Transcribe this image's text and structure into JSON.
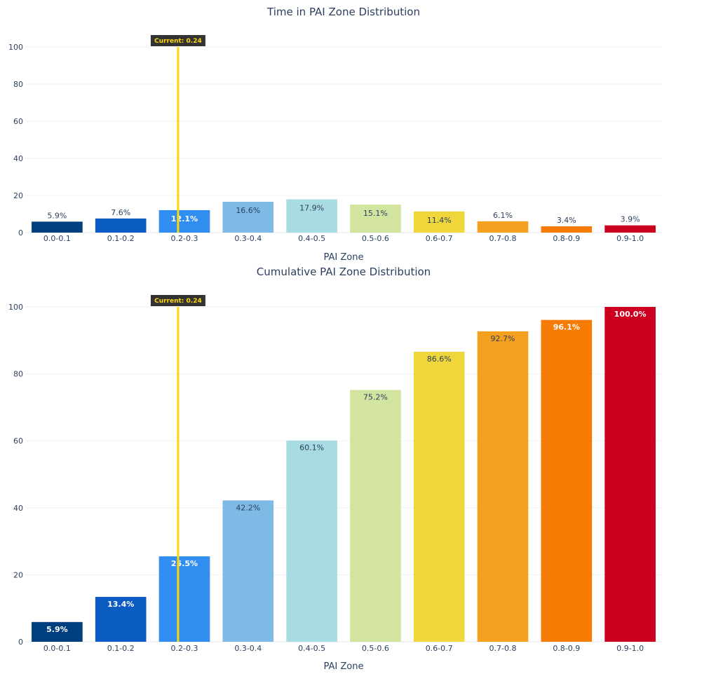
{
  "colors": {
    "zones": [
      "#003f7f",
      "#0a5cc2",
      "#2f8eef",
      "#7dbbe6",
      "#a8dbe2",
      "#d3e4a0",
      "#efd63a",
      "#f5a01f",
      "#f67c05",
      "#cc001e"
    ],
    "marker_line": "#ffd60a",
    "marker_box": "#333333",
    "marker_text": "#ffd60a"
  },
  "chart_data": [
    {
      "type": "bar",
      "title": "Time in PAI Zone Distribution",
      "xlabel": "PAI Zone",
      "ylabel": "",
      "categories": [
        "0.0-0.1",
        "0.1-0.2",
        "0.2-0.3",
        "0.3-0.4",
        "0.4-0.5",
        "0.5-0.6",
        "0.6-0.7",
        "0.7-0.8",
        "0.8-0.9",
        "0.9-1.0"
      ],
      "values": [
        5.9,
        7.6,
        12.1,
        16.6,
        17.9,
        15.1,
        11.4,
        6.1,
        3.4,
        3.9
      ],
      "labels": [
        "5.9%",
        "7.6%",
        "12.1%",
        "16.6%",
        "17.9%",
        "15.1%",
        "11.4%",
        "6.1%",
        "3.4%",
        "3.9%"
      ],
      "ylim": [
        0,
        105
      ],
      "yticks": [
        0,
        20,
        40,
        60,
        80,
        100
      ],
      "grid": true,
      "marker": {
        "x": 0.24,
        "label": "Current: 0.24"
      }
    },
    {
      "type": "bar",
      "title": "Cumulative PAI Zone Distribution",
      "xlabel": "PAI Zone",
      "ylabel": "",
      "categories": [
        "0.0-0.1",
        "0.1-0.2",
        "0.2-0.3",
        "0.3-0.4",
        "0.4-0.5",
        "0.5-0.6",
        "0.6-0.7",
        "0.7-0.8",
        "0.8-0.9",
        "0.9-1.0"
      ],
      "values": [
        5.9,
        13.4,
        25.5,
        42.2,
        60.1,
        75.2,
        86.6,
        92.7,
        96.1,
        100.0
      ],
      "labels": [
        "5.9%",
        "13.4%",
        "25.5%",
        "42.2%",
        "60.1%",
        "75.2%",
        "86.6%",
        "92.7%",
        "96.1%",
        "100.0%"
      ],
      "ylim": [
        0,
        105
      ],
      "yticks": [
        0,
        20,
        40,
        60,
        80,
        100
      ],
      "grid": true,
      "marker": {
        "x": 0.24,
        "label": "Current: 0.24"
      }
    }
  ]
}
